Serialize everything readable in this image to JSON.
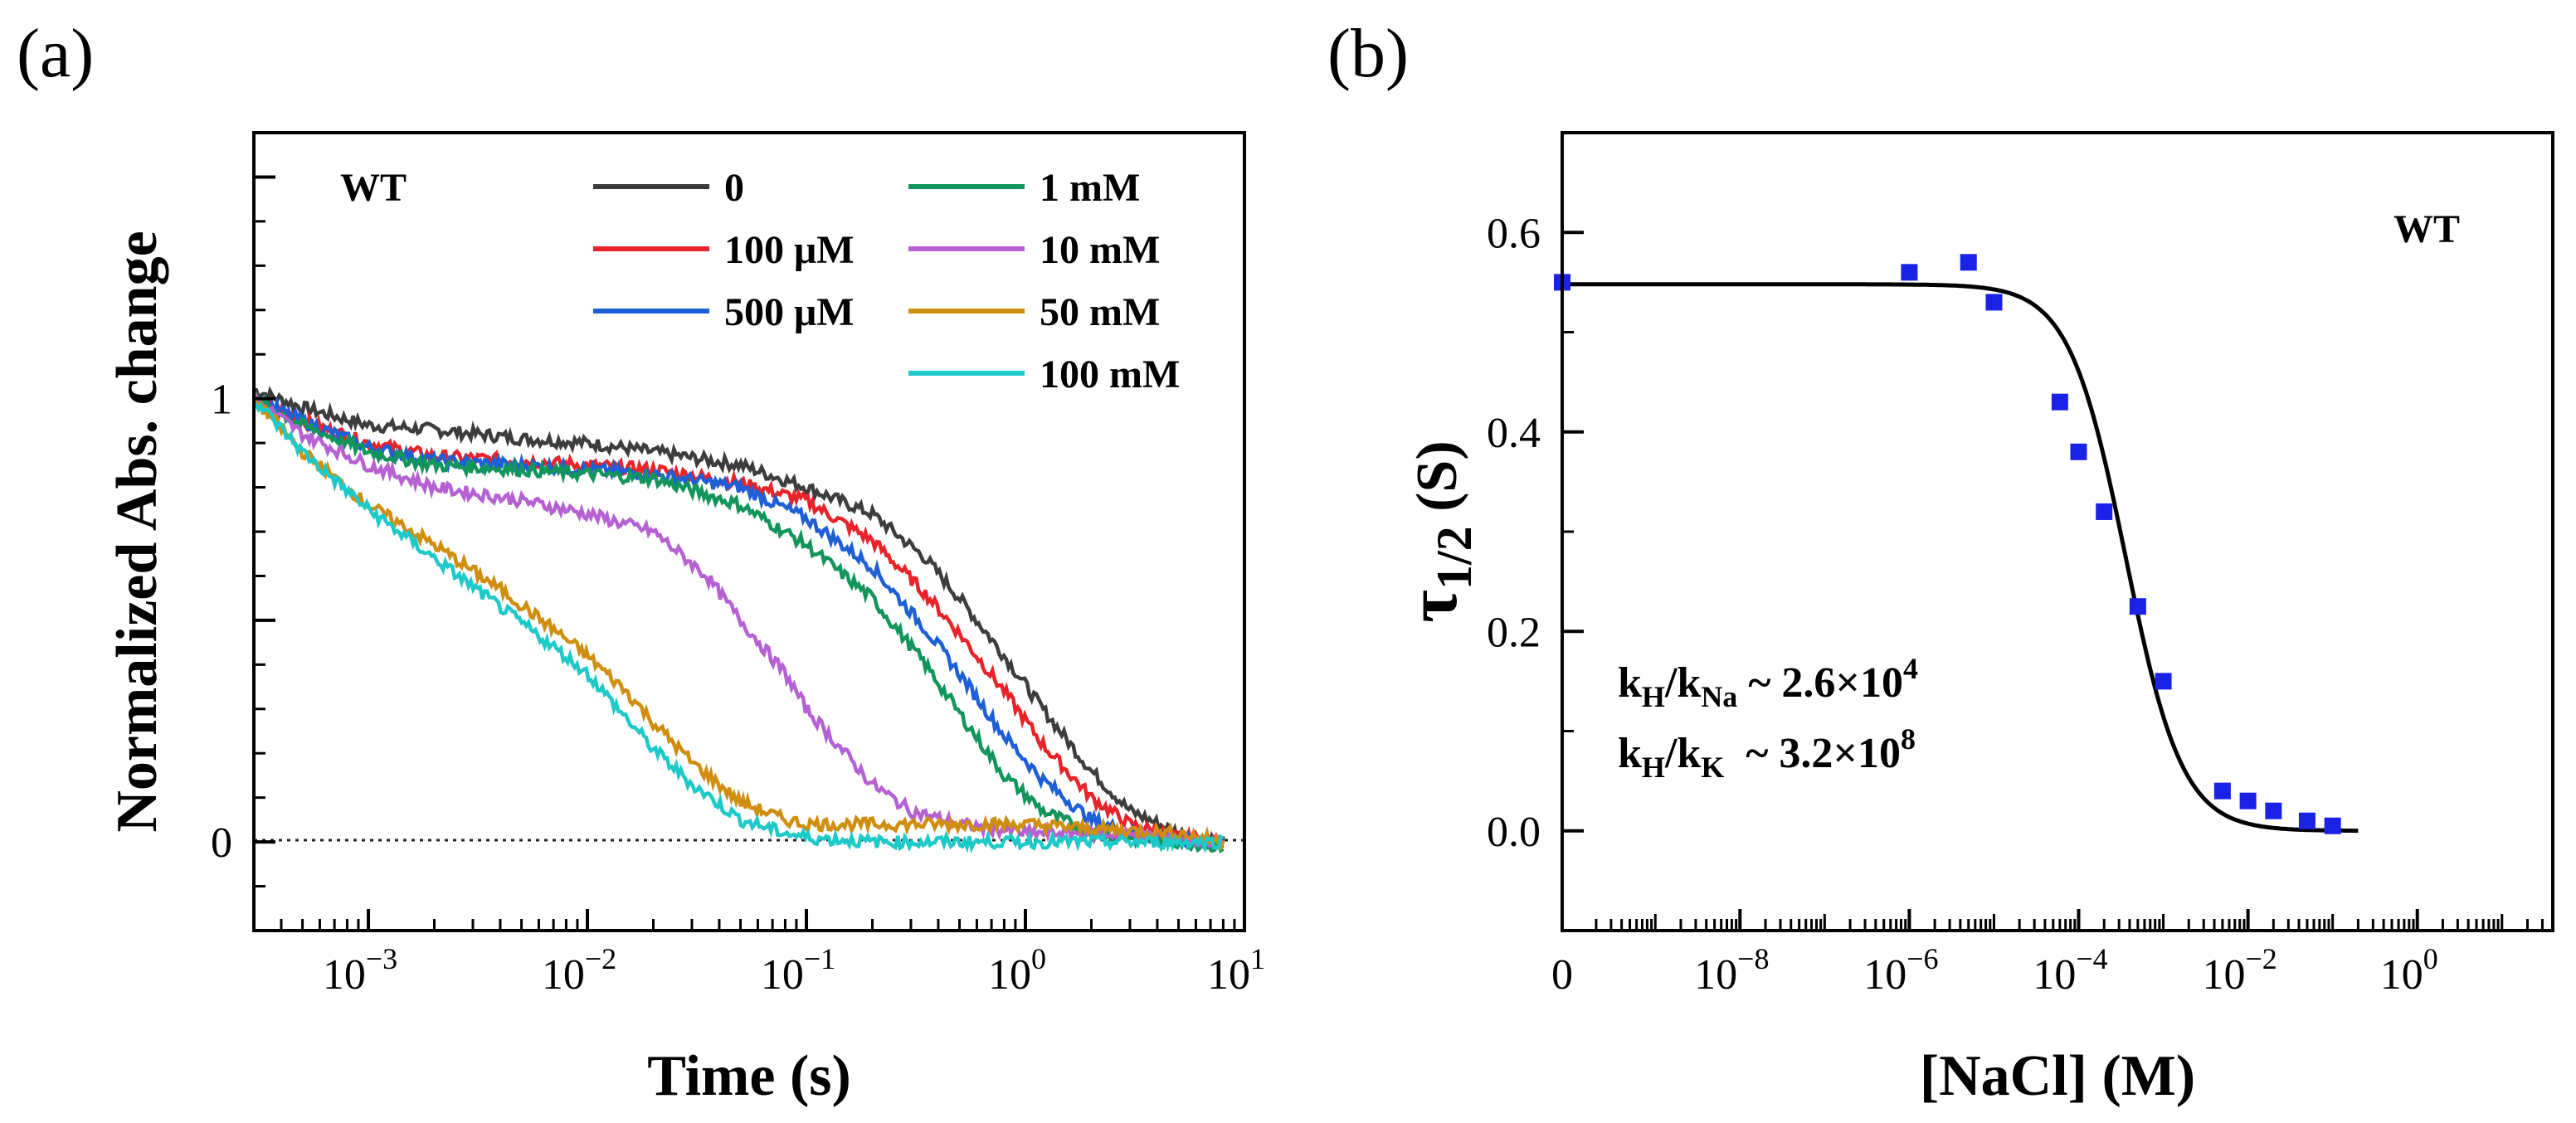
{
  "panel_labels": {
    "a": "(a)",
    "b": "(b)"
  },
  "chart_data": [
    {
      "type": "line",
      "panel": "(a)",
      "title": "",
      "annotation": "WT",
      "xlabel": "Time (s)",
      "ylabel": "Normalized Abs. change",
      "xscale": "log",
      "xlim": [
        0.0003,
        10
      ],
      "ylim": [
        -0.2,
        1.6
      ],
      "xticks": [
        {
          "value": 0.001,
          "base": "10",
          "exp": "−3"
        },
        {
          "value": 0.01,
          "base": "10",
          "exp": "−2"
        },
        {
          "value": 0.1,
          "base": "10",
          "exp": "−1"
        },
        {
          "value": 1,
          "base": "10",
          "exp": "0"
        },
        {
          "value": 10,
          "base": "10",
          "exp": "1"
        }
      ],
      "yticks": [
        {
          "value": 0,
          "label": "0"
        },
        {
          "value": 1,
          "label": "1"
        }
      ],
      "reference_line": {
        "y": 0,
        "style": "dotted"
      },
      "legend_position": "top-right",
      "series": [
        {
          "name": "0",
          "color": "#3d3d3d",
          "t": [
            0.0003,
            0.0005,
            0.001,
            0.002,
            0.005,
            0.01,
            0.02,
            0.05,
            0.1,
            0.2,
            0.35,
            0.5,
            0.8,
            1.2,
            2,
            3,
            5,
            8
          ],
          "y": [
            1.02,
            0.98,
            0.94,
            0.93,
            0.91,
            0.9,
            0.88,
            0.85,
            0.8,
            0.74,
            0.64,
            0.55,
            0.42,
            0.3,
            0.16,
            0.07,
            0.02,
            0.0
          ]
        },
        {
          "name": "100 μM",
          "color": "#e8232a",
          "t": [
            0.0003,
            0.0005,
            0.001,
            0.002,
            0.005,
            0.01,
            0.02,
            0.05,
            0.1,
            0.2,
            0.35,
            0.5,
            0.8,
            1.2,
            2,
            3,
            5,
            8
          ],
          "y": [
            1.0,
            0.95,
            0.9,
            0.87,
            0.86,
            0.85,
            0.84,
            0.81,
            0.77,
            0.68,
            0.56,
            0.47,
            0.34,
            0.22,
            0.1,
            0.04,
            0.01,
            0.0
          ]
        },
        {
          "name": "500 μM",
          "color": "#1e5fd8",
          "t": [
            0.0003,
            0.0005,
            0.001,
            0.002,
            0.005,
            0.01,
            0.02,
            0.05,
            0.1,
            0.2,
            0.35,
            0.5,
            0.8,
            1.2,
            2,
            3,
            5,
            8
          ],
          "y": [
            1.0,
            0.95,
            0.89,
            0.86,
            0.85,
            0.84,
            0.83,
            0.8,
            0.73,
            0.62,
            0.48,
            0.38,
            0.24,
            0.14,
            0.05,
            0.02,
            0.0,
            0.0
          ]
        },
        {
          "name": "1 mM",
          "color": "#12955b",
          "t": [
            0.0003,
            0.0005,
            0.001,
            0.002,
            0.005,
            0.01,
            0.02,
            0.05,
            0.1,
            0.2,
            0.35,
            0.5,
            0.8,
            1.2,
            2,
            3,
            5,
            8
          ],
          "y": [
            1.0,
            0.94,
            0.88,
            0.85,
            0.84,
            0.83,
            0.82,
            0.76,
            0.67,
            0.55,
            0.4,
            0.29,
            0.15,
            0.07,
            0.02,
            0.01,
            0.0,
            -0.01
          ]
        },
        {
          "name": "10 mM",
          "color": "#b561d3",
          "t": [
            0.0003,
            0.0005,
            0.001,
            0.002,
            0.005,
            0.01,
            0.02,
            0.035,
            0.05,
            0.08,
            0.1,
            0.15,
            0.2,
            0.3,
            0.5,
            1,
            2,
            5,
            8
          ],
          "y": [
            1.0,
            0.92,
            0.85,
            0.8,
            0.77,
            0.74,
            0.7,
            0.6,
            0.5,
            0.38,
            0.3,
            0.2,
            0.13,
            0.07,
            0.04,
            0.02,
            0.02,
            0.01,
            0.0
          ]
        },
        {
          "name": "50 mM",
          "color": "#d08e0e",
          "t": [
            0.0003,
            0.0005,
            0.001,
            0.002,
            0.004,
            0.007,
            0.01,
            0.015,
            0.02,
            0.03,
            0.05,
            0.08,
            0.1,
            0.2,
            0.5,
            1,
            2,
            5,
            8
          ],
          "y": [
            1.0,
            0.88,
            0.76,
            0.67,
            0.57,
            0.48,
            0.42,
            0.34,
            0.27,
            0.18,
            0.09,
            0.05,
            0.04,
            0.04,
            0.04,
            0.04,
            0.03,
            0.02,
            0.0
          ]
        },
        {
          "name": "100 mM",
          "color": "#1ec9c9",
          "t": [
            0.0003,
            0.0005,
            0.001,
            0.002,
            0.004,
            0.007,
            0.01,
            0.015,
            0.02,
            0.03,
            0.05,
            0.08,
            0.1,
            0.2,
            0.5,
            1,
            2,
            5,
            8
          ],
          "y": [
            1.0,
            0.88,
            0.75,
            0.64,
            0.53,
            0.44,
            0.38,
            0.28,
            0.21,
            0.13,
            0.05,
            0.02,
            0.01,
            0.0,
            0.0,
            0.0,
            0.0,
            0.0,
            0.0
          ]
        }
      ]
    },
    {
      "type": "scatter",
      "panel": "(b)",
      "title": "",
      "annotation": "WT",
      "xlabel": "[NaCl] (M)",
      "ylabel": {
        "symbol": "τ",
        "subscript": "1/2",
        "unit": " (S)"
      },
      "xscale": "log",
      "x_break_label": "0",
      "xlim_exponent": [
        -10.1,
        1.6
      ],
      "ylim": [
        -0.1,
        0.7
      ],
      "xticks": [
        {
          "value": 1e-08,
          "base": "10",
          "exp": "−8"
        },
        {
          "value": 1e-06,
          "base": "10",
          "exp": "−6"
        },
        {
          "value": 0.0001,
          "base": "10",
          "exp": "−4"
        },
        {
          "value": 0.01,
          "base": "10",
          "exp": "−2"
        },
        {
          "value": 1,
          "base": "10",
          "exp": "0"
        }
      ],
      "yticks": [
        {
          "value": 0.0,
          "label": "0.0"
        },
        {
          "value": 0.2,
          "label": "0.2"
        },
        {
          "value": 0.4,
          "label": "0.4"
        },
        {
          "value": 0.6,
          "label": "0.6"
        }
      ],
      "marker_color": "#1a22e6",
      "points": [
        {
          "x": 0,
          "y": 0.55
        },
        {
          "x": 1e-06,
          "y": 0.56
        },
        {
          "x": 5e-06,
          "y": 0.57
        },
        {
          "x": 1e-05,
          "y": 0.53
        },
        {
          "x": 6e-05,
          "y": 0.43
        },
        {
          "x": 0.0001,
          "y": 0.38
        },
        {
          "x": 0.0002,
          "y": 0.32
        },
        {
          "x": 0.0005,
          "y": 0.225
        },
        {
          "x": 0.001,
          "y": 0.15
        },
        {
          "x": 0.005,
          "y": 0.04
        },
        {
          "x": 0.01,
          "y": 0.03
        },
        {
          "x": 0.02,
          "y": 0.02
        },
        {
          "x": 0.05,
          "y": 0.01
        },
        {
          "x": 0.1,
          "y": 0.005
        }
      ],
      "fit": {
        "plateau": 0.548,
        "half_conc": 0.00036,
        "hill": 1.3,
        "x_end": 0.2,
        "color": "#000000"
      },
      "annotations": [
        {
          "k1": "k",
          "s1": "H",
          "k2": "/k",
          "s2": "Na",
          "rest": " ~ 2.6×10",
          "sup": "4"
        },
        {
          "k1": "k",
          "s1": "H",
          "k2": "/k",
          "s2": "K",
          "rest": "  ~ 3.2×10",
          "sup": "8"
        }
      ]
    }
  ]
}
